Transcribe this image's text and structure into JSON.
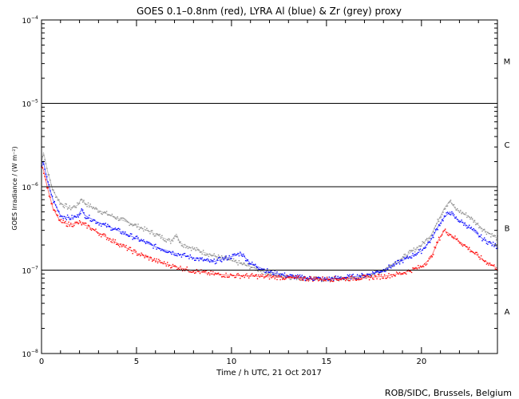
{
  "chart_data": {
    "type": "scatter",
    "title": "GOES 0.1–0.8nm (red), LYRA Al (blue) & Zr (grey) proxy",
    "xlabel": "Time / h UTC, 21 Oct 2017",
    "ylabel": "GOES Irradiance / (W m⁻²)",
    "yscale": "log",
    "xlim": [
      0,
      24
    ],
    "ylim": [
      1e-08,
      0.0001
    ],
    "x_ticks": [
      0,
      5,
      10,
      15,
      20
    ],
    "y_ticks": [
      {
        "value": 1e-08,
        "base": "10",
        "exp": "−8"
      },
      {
        "value": 1e-07,
        "base": "10",
        "exp": "−7"
      },
      {
        "value": 1e-06,
        "base": "10",
        "exp": "−6"
      },
      {
        "value": 1e-05,
        "base": "10",
        "exp": "−5"
      },
      {
        "value": 0.0001,
        "base": "10",
        "exp": "−4"
      }
    ],
    "reference_lines": [
      1e-07,
      1e-06,
      1e-05
    ],
    "flare_classes": [
      {
        "label": "M",
        "value": 3.2e-05
      },
      {
        "label": "C",
        "value": 3.2e-06
      },
      {
        "label": "B",
        "value": 3.2e-07
      },
      {
        "label": "A",
        "value": 3.2e-08
      }
    ],
    "series": [
      {
        "name": "LYRA Zr proxy",
        "color": "#8c8c8c",
        "points": [
          [
            0,
            1.9e-06
          ],
          [
            0.1,
            2.6e-06
          ],
          [
            0.3,
            1.6e-06
          ],
          [
            0.6,
            9e-07
          ],
          [
            1.0,
            6.3e-07
          ],
          [
            1.5,
            5.5e-07
          ],
          [
            1.9,
            6e-07
          ],
          [
            2.1,
            7.2e-07
          ],
          [
            2.3,
            6.3e-07
          ],
          [
            3,
            5.2e-07
          ],
          [
            4,
            4.2e-07
          ],
          [
            5,
            3.4e-07
          ],
          [
            6,
            2.7e-07
          ],
          [
            6.8,
            2.2e-07
          ],
          [
            7.1,
            2.7e-07
          ],
          [
            7.3,
            2.1e-07
          ],
          [
            8,
            1.8e-07
          ],
          [
            9,
            1.5e-07
          ],
          [
            10,
            1.3e-07
          ],
          [
            11,
            1.1e-07
          ],
          [
            12,
            9e-08
          ],
          [
            13,
            8.3e-08
          ],
          [
            14,
            7.9e-08
          ],
          [
            15,
            7.7e-08
          ],
          [
            16,
            7.9e-08
          ],
          [
            17,
            8.3e-08
          ],
          [
            18,
            1e-07
          ],
          [
            19,
            1.4e-07
          ],
          [
            20,
            2e-07
          ],
          [
            20.5,
            2.6e-07
          ],
          [
            20.9,
            4e-07
          ],
          [
            21.2,
            5.5e-07
          ],
          [
            21.5,
            6.8e-07
          ],
          [
            21.8,
            5.4e-07
          ],
          [
            22.5,
            4.4e-07
          ],
          [
            23.3,
            3e-07
          ],
          [
            24,
            2.4e-07
          ]
        ]
      },
      {
        "name": "LYRA Al proxy",
        "color": "#0000ff",
        "points": [
          [
            0,
            1.7e-06
          ],
          [
            0.1,
            2e-06
          ],
          [
            0.3,
            1.2e-06
          ],
          [
            0.6,
            7e-07
          ],
          [
            1.0,
            4.5e-07
          ],
          [
            1.5,
            4.2e-07
          ],
          [
            1.9,
            4.4e-07
          ],
          [
            2.1,
            5.3e-07
          ],
          [
            2.3,
            4.5e-07
          ],
          [
            3,
            3.7e-07
          ],
          [
            4,
            3e-07
          ],
          [
            5,
            2.4e-07
          ],
          [
            6,
            1.9e-07
          ],
          [
            7,
            1.6e-07
          ],
          [
            8,
            1.4e-07
          ],
          [
            9,
            1.25e-07
          ],
          [
            10,
            1.45e-07
          ],
          [
            10.5,
            1.6e-07
          ],
          [
            11,
            1.2e-07
          ],
          [
            12,
            9.5e-08
          ],
          [
            13,
            8.5e-08
          ],
          [
            14,
            8e-08
          ],
          [
            15,
            7.8e-08
          ],
          [
            16,
            8.2e-08
          ],
          [
            17,
            8.6e-08
          ],
          [
            18,
            1e-07
          ],
          [
            19,
            1.3e-07
          ],
          [
            20,
            1.7e-07
          ],
          [
            20.5,
            2.3e-07
          ],
          [
            20.9,
            3.4e-07
          ],
          [
            21.2,
            4.3e-07
          ],
          [
            21.5,
            5e-07
          ],
          [
            21.8,
            4.2e-07
          ],
          [
            22.5,
            3.3e-07
          ],
          [
            23.3,
            2.3e-07
          ],
          [
            24,
            1.9e-07
          ]
        ]
      },
      {
        "name": "GOES 0.1–0.8nm",
        "color": "#ff0000",
        "points": [
          [
            0,
            1.8e-06
          ],
          [
            0.1,
            1.6e-06
          ],
          [
            0.3,
            1e-06
          ],
          [
            0.6,
            5.5e-07
          ],
          [
            1.0,
            3.8e-07
          ],
          [
            1.5,
            3.5e-07
          ],
          [
            2.0,
            3.7e-07
          ],
          [
            2.5,
            3.3e-07
          ],
          [
            3,
            2.8e-07
          ],
          [
            4,
            2.1e-07
          ],
          [
            5,
            1.6e-07
          ],
          [
            6,
            1.3e-07
          ],
          [
            7,
            1.1e-07
          ],
          [
            8,
            9.8e-08
          ],
          [
            9,
            9e-08
          ],
          [
            10,
            8.6e-08
          ],
          [
            11,
            8.5e-08
          ],
          [
            12,
            8.3e-08
          ],
          [
            13,
            8.1e-08
          ],
          [
            14,
            7.9e-08
          ],
          [
            15,
            7.8e-08
          ],
          [
            16,
            7.9e-08
          ],
          [
            17,
            8.1e-08
          ],
          [
            18,
            8.4e-08
          ],
          [
            19,
            9.2e-08
          ],
          [
            20,
            1.1e-07
          ],
          [
            20.5,
            1.4e-07
          ],
          [
            20.9,
            2.3e-07
          ],
          [
            21.2,
            3e-07
          ],
          [
            21.5,
            2.7e-07
          ],
          [
            22,
            2.2e-07
          ],
          [
            22.5,
            1.8e-07
          ],
          [
            23.3,
            1.3e-07
          ],
          [
            24,
            1.05e-07
          ]
        ]
      }
    ]
  },
  "credit": "ROB/SIDC, Brussels, Belgium"
}
